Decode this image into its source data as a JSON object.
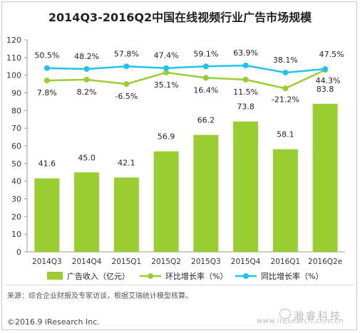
{
  "title": "2014Q3-2016Q2中国在线视频行业广告市场规模",
  "source": "来源：综合企业财报及专家访谈，根据艾瑞统计模型核算。",
  "copyright": "©2016.9 iResearch Inc.",
  "watermark": {
    "site": "www.iresearch.com.cn",
    "brand": "瀚睿科技"
  },
  "colors": {
    "bar": "#9acd32",
    "line_qoq": "#9acd32",
    "line_yoy": "#1ec3f0",
    "axis": "#999999",
    "text": "#222222"
  },
  "chart_data": {
    "type": "bar",
    "categories": [
      "2014Q3",
      "2014Q4",
      "2015Q1",
      "2015Q2",
      "2015Q3",
      "2015Q4",
      "2016Q1",
      "2016Q2e"
    ],
    "ylim": [
      0,
      120
    ],
    "yticks": [
      0,
      10,
      20,
      30,
      40,
      50,
      60,
      70,
      80,
      90,
      100,
      110,
      120
    ],
    "grid": false,
    "legend_position": "bottom",
    "series": [
      {
        "name": "广告收入（亿元）",
        "type": "bar",
        "values": [
          41.6,
          45.0,
          42.1,
          56.9,
          66.2,
          73.8,
          58.1,
          83.8
        ],
        "labels": [
          "41.6",
          "45.0",
          "42.1",
          "56.9",
          "66.2",
          "73.8",
          "58.1",
          "83.8"
        ]
      },
      {
        "name": "环比增长率（%）",
        "type": "line",
        "values": [
          7.8,
          8.2,
          -6.5,
          35.1,
          16.4,
          11.5,
          -21.2,
          44.3
        ],
        "labels": [
          "7.8%",
          "8.2%",
          "-6.5%",
          "35.1%",
          "16.4%",
          "11.5%",
          "-21.2%",
          "44.3%"
        ],
        "plot_y": [
          97,
          97.5,
          95,
          101.5,
          98.5,
          97.5,
          92.5,
          103
        ]
      },
      {
        "name": "同比增长率（%）",
        "type": "line",
        "values": [
          50.5,
          48.2,
          57.8,
          47.4,
          59.1,
          63.9,
          38.1,
          47.5
        ],
        "labels": [
          "50.5%",
          "48.2%",
          "57.8%",
          "47.4%",
          "59.1%",
          "63.9%",
          "38.1%",
          "47.5%"
        ],
        "plot_y": [
          104,
          103.5,
          105,
          104,
          105,
          105.5,
          101.5,
          103.5
        ]
      }
    ]
  }
}
